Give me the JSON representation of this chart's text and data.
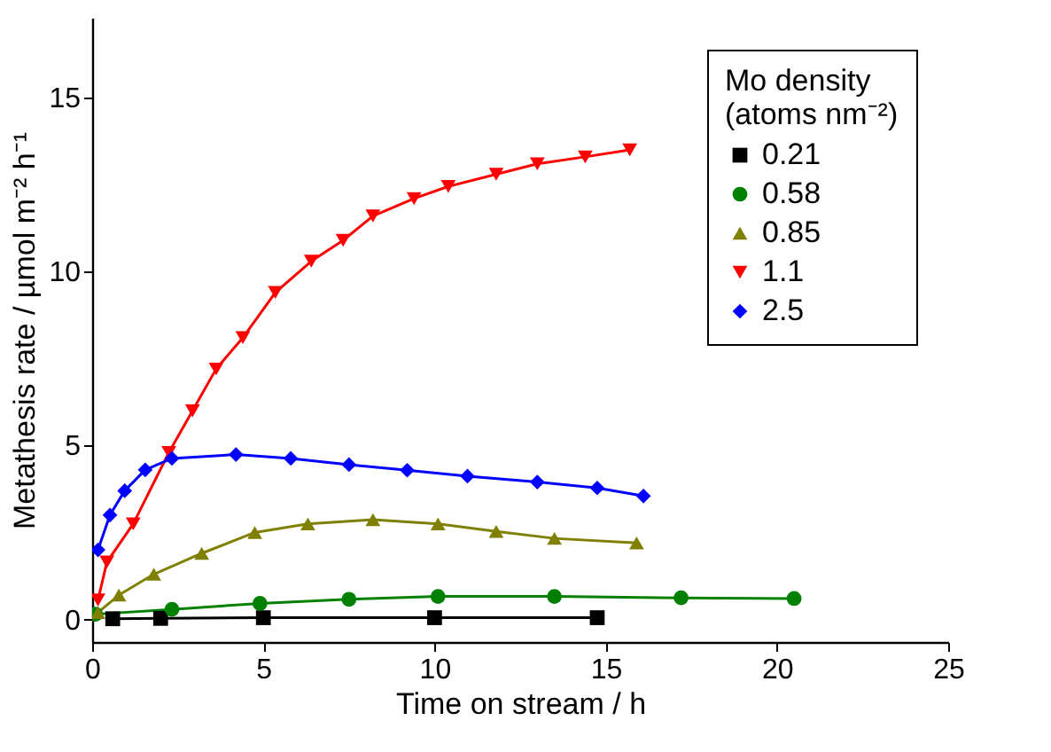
{
  "chart_data": {
    "type": "line",
    "xlabel": "Time on stream / h",
    "ylabel": "Metathesis rate / µmol m⁻² h⁻¹",
    "legend_title": "Mo density\n(atoms nm⁻²)",
    "xlim": [
      0,
      25
    ],
    "xticks": [
      0,
      5,
      10,
      15,
      20,
      25
    ],
    "ylim": [
      -0.65,
      17.3
    ],
    "yticks": [
      0,
      5,
      10,
      15
    ],
    "grid": false,
    "legend": "top right",
    "line_style": "solid",
    "series": [
      {
        "name": "0.21",
        "color": "#000000",
        "marker": "square",
        "x": [
          0.6,
          2,
          5,
          10,
          14.75
        ],
        "values": [
          0.02,
          0.03,
          0.05,
          0.05,
          0.05
        ]
      },
      {
        "name": "0.58",
        "color": "#008000",
        "marker": "circle",
        "x": [
          0.1,
          2.33,
          4.9,
          7.5,
          10.1,
          13.5,
          17.2,
          20.5
        ],
        "values": [
          0.15,
          0.29,
          0.46,
          0.58,
          0.66,
          0.66,
          0.62,
          0.6
        ]
      },
      {
        "name": "0.85",
        "color": "#808000",
        "marker": "triangle-up",
        "x": [
          0.17,
          0.78,
          1.8,
          3.2,
          4.75,
          6.3,
          8.2,
          10.1,
          11.8,
          13.5,
          15.9
        ],
        "values": [
          0.2,
          0.7,
          1.3,
          1.9,
          2.5,
          2.75,
          2.87,
          2.75,
          2.53,
          2.33,
          2.2
        ]
      },
      {
        "name": "1.1",
        "color": "#ff0000",
        "marker": "triangle-down",
        "x": [
          0.17,
          0.43,
          1.2,
          2.24,
          2.93,
          3.62,
          4.4,
          5.35,
          6.4,
          7.33,
          8.2,
          9.4,
          10.4,
          11.8,
          13.0,
          14.4,
          15.7
        ],
        "values": [
          0.56,
          1.65,
          2.75,
          4.8,
          6.0,
          7.2,
          8.1,
          9.4,
          10.3,
          10.9,
          11.6,
          12.1,
          12.45,
          12.8,
          13.1,
          13.3,
          13.5
        ]
      },
      {
        "name": "2.5",
        "color": "#0000ff",
        "marker": "diamond",
        "x": [
          0.17,
          0.52,
          0.95,
          1.55,
          2.33,
          4.2,
          5.8,
          7.5,
          9.2,
          10.96,
          13.0,
          14.75,
          16.1
        ],
        "values": [
          2.0,
          3.0,
          3.7,
          4.3,
          4.63,
          4.74,
          4.63,
          4.45,
          4.29,
          4.12,
          3.95,
          3.78,
          3.55
        ]
      }
    ]
  }
}
